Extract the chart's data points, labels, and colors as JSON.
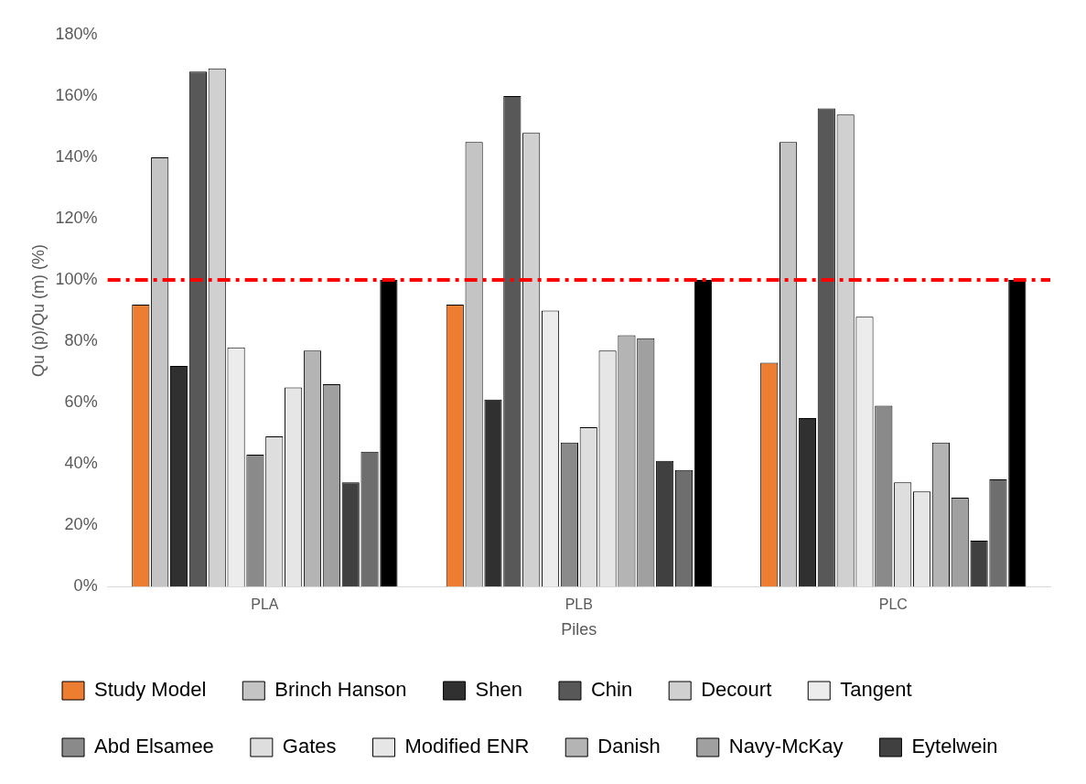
{
  "chart_data": {
    "type": "bar",
    "xlabel": "Piles",
    "ylabel": "Qu (p)/Qu (m) (%)",
    "categories": [
      "PLA",
      "PLB",
      "PLC"
    ],
    "ylim": [
      0,
      180
    ],
    "yticks": [
      {
        "value": 0,
        "label": "0%"
      },
      {
        "value": 20,
        "label": "20%"
      },
      {
        "value": 40,
        "label": "40%"
      },
      {
        "value": 60,
        "label": "60%"
      },
      {
        "value": 80,
        "label": "80%"
      },
      {
        "value": 100,
        "label": "100%"
      },
      {
        "value": 120,
        "label": "120%"
      },
      {
        "value": 140,
        "label": "140%"
      },
      {
        "value": 160,
        "label": "160%"
      },
      {
        "value": 180,
        "label": "180%"
      }
    ],
    "grid": false,
    "legend": "bottom",
    "ref_lines": [
      {
        "axis": "y",
        "value": 100,
        "color": "#ff0000",
        "line_style": "dashed"
      }
    ],
    "series": [
      {
        "name": "Study Model",
        "color": "#ed7d31",
        "values": [
          92,
          92,
          73
        ]
      },
      {
        "name": "Brinch Hanson",
        "color": "#c4c4c4",
        "values": [
          140,
          145,
          145
        ]
      },
      {
        "name": "Shen",
        "color": "#303030",
        "values": [
          72,
          61,
          55
        ]
      },
      {
        "name": "Chin",
        "color": "#585858",
        "values": [
          168,
          160,
          156
        ]
      },
      {
        "name": "Decourt",
        "color": "#d0d0d0",
        "values": [
          169,
          148,
          154
        ]
      },
      {
        "name": "Tangent",
        "color": "#ececec",
        "values": [
          78,
          90,
          88
        ]
      },
      {
        "name": "Abd Elsamee",
        "color": "#8a8a8a",
        "values": [
          43,
          47,
          59
        ]
      },
      {
        "name": "Gates",
        "color": "#dedede",
        "values": [
          49,
          52,
          34
        ]
      },
      {
        "name": "Modified ENR",
        "color": "#e6e6e6",
        "values": [
          65,
          77,
          31
        ]
      },
      {
        "name": "Danish",
        "color": "#b4b4b4",
        "values": [
          77,
          82,
          47
        ]
      },
      {
        "name": "Navy-McKay",
        "color": "#a0a0a0",
        "values": [
          66,
          81,
          29
        ]
      },
      {
        "name": "Eytelwein",
        "color": "#404040",
        "values": [
          34,
          41,
          15
        ]
      },
      {
        "color": "#6e6e6e",
        "values": [
          44,
          38,
          35
        ]
      },
      {
        "color": "#000000",
        "values": [
          100,
          100,
          100
        ]
      }
    ]
  }
}
